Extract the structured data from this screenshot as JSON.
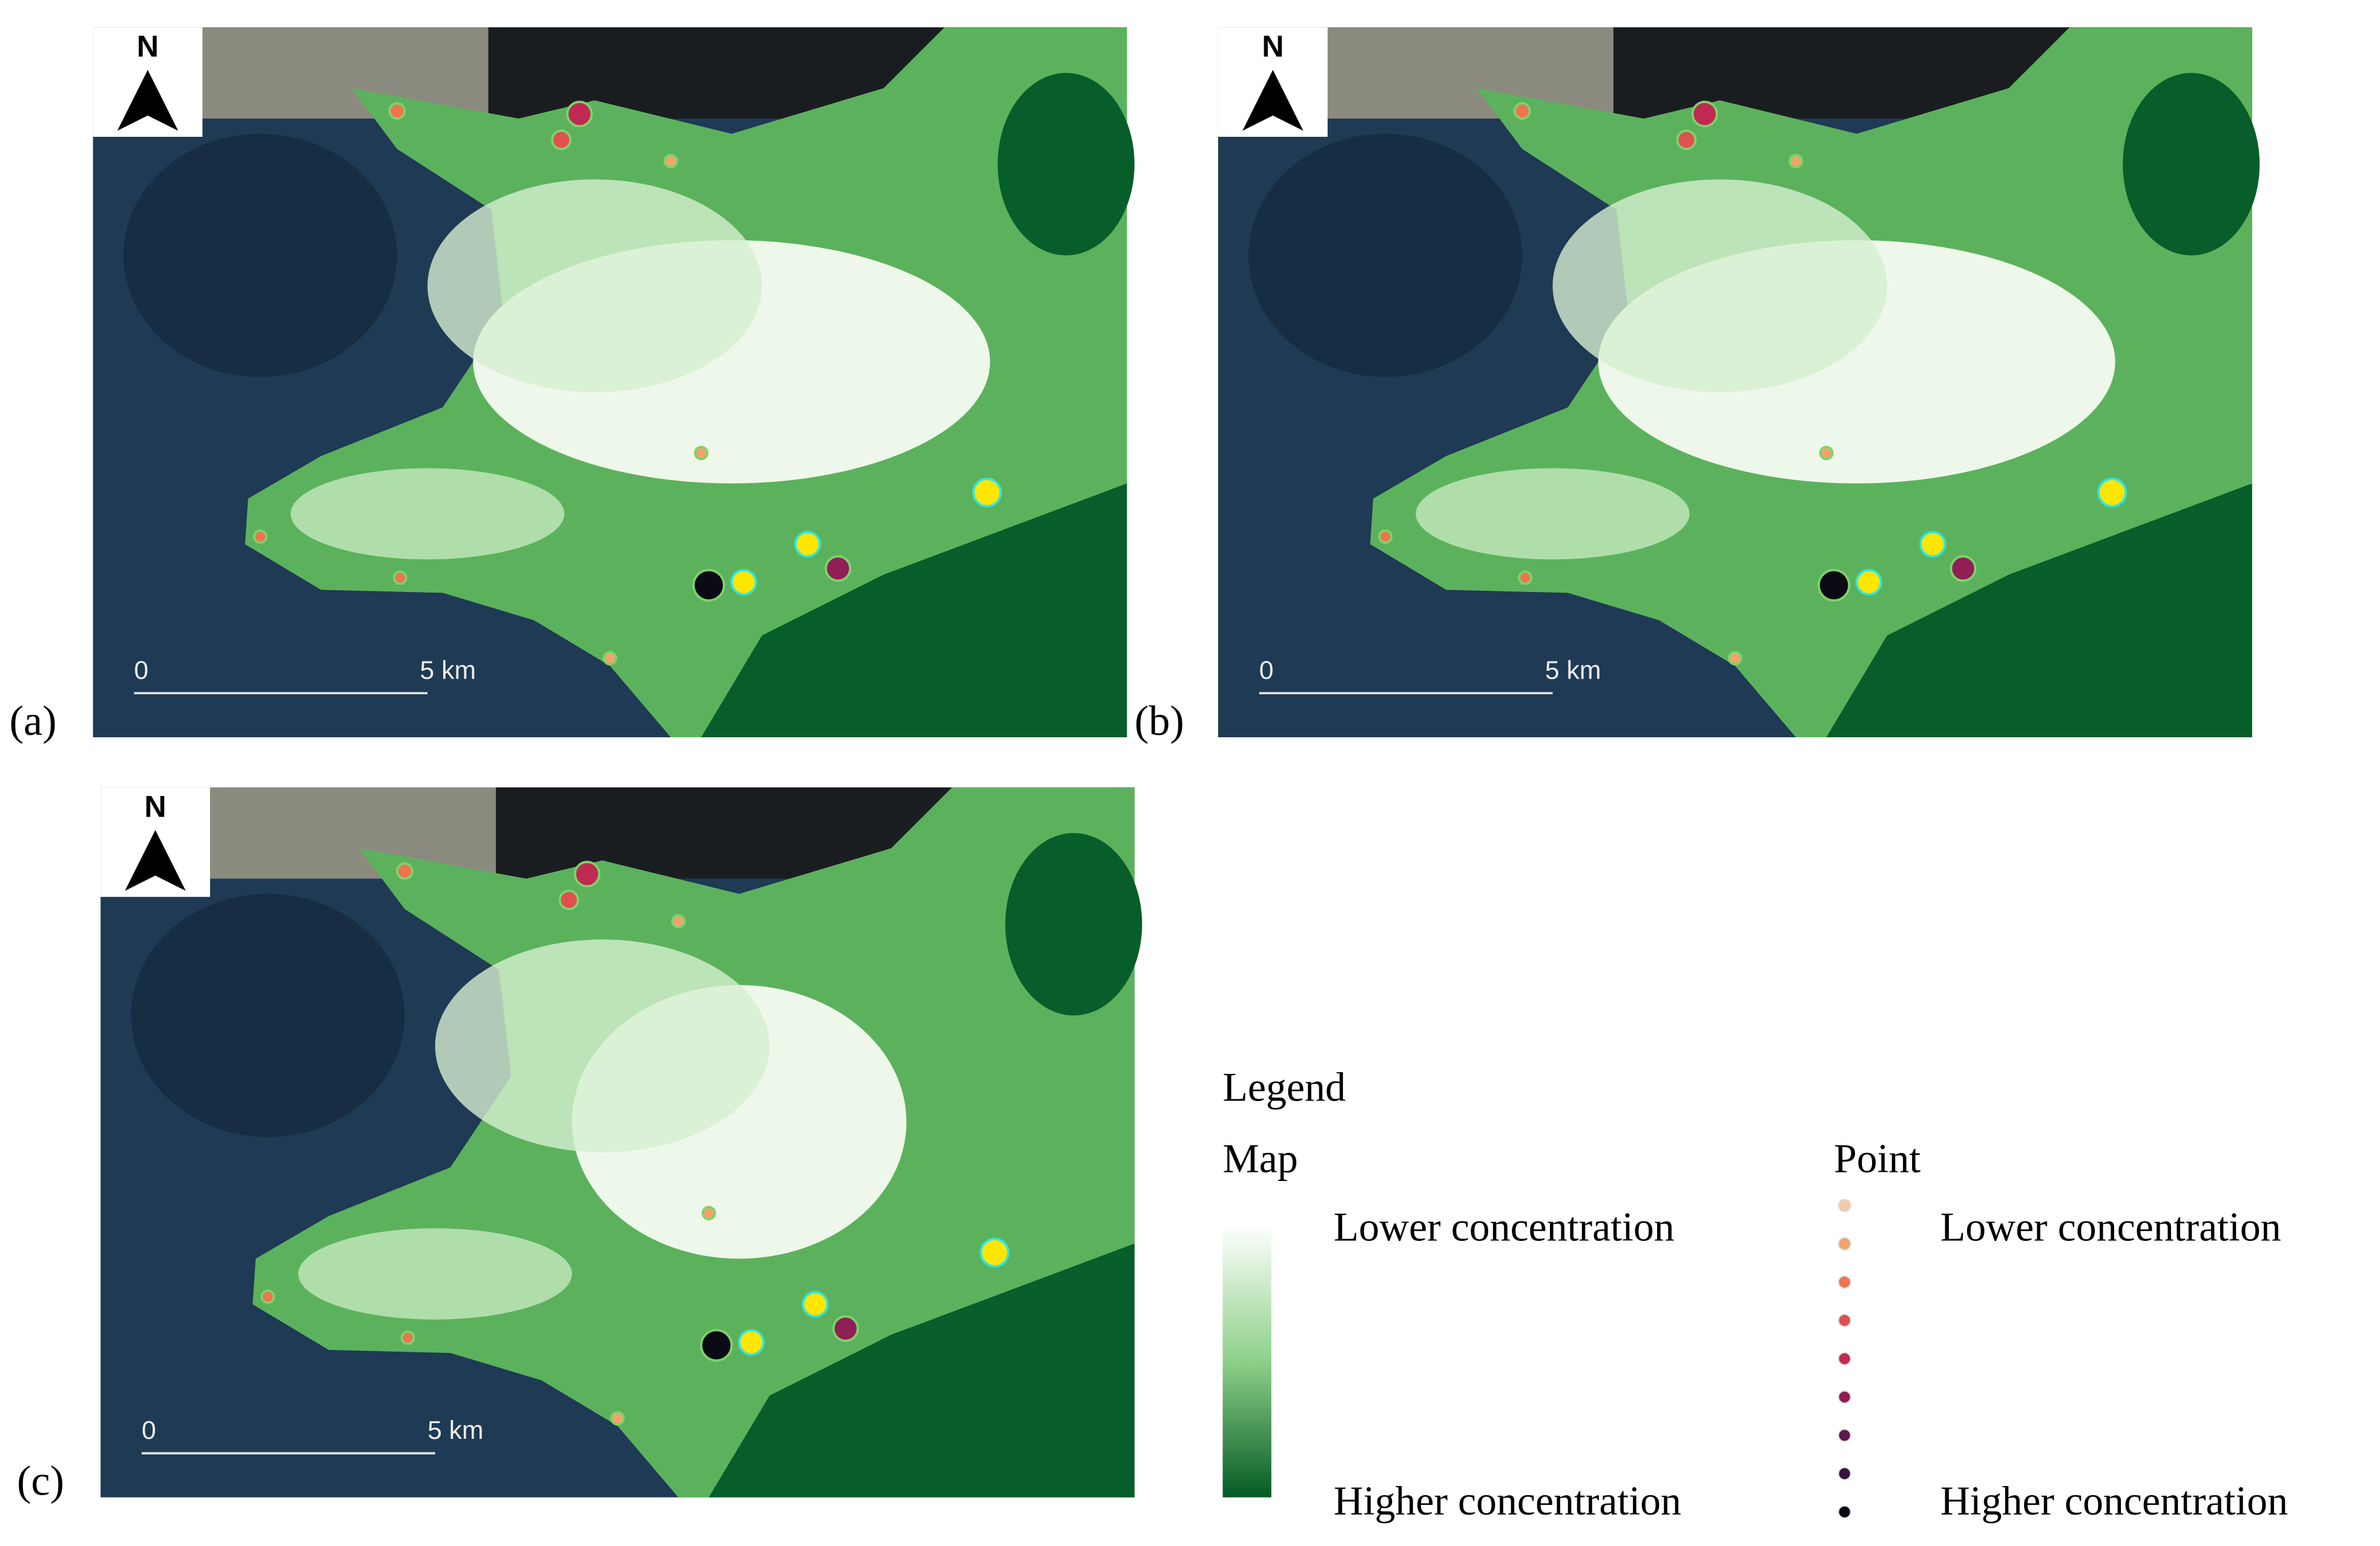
{
  "panels": [
    {
      "label": "(a)",
      "north": "N",
      "scale_start": "0",
      "scale_end": "5 km"
    },
    {
      "label": "(b)",
      "north": "N",
      "scale_start": "0",
      "scale_end": "5 km"
    },
    {
      "label": "(c)",
      "north": "N",
      "scale_start": "0",
      "scale_end": "5 km"
    }
  ],
  "legend": {
    "title": "Legend",
    "map": {
      "heading": "Map",
      "low": "Lower concentration",
      "high": "Higher concentration"
    },
    "point": {
      "heading": "Point",
      "low": "Lower concentration",
      "high": "Higher concentration"
    }
  }
}
